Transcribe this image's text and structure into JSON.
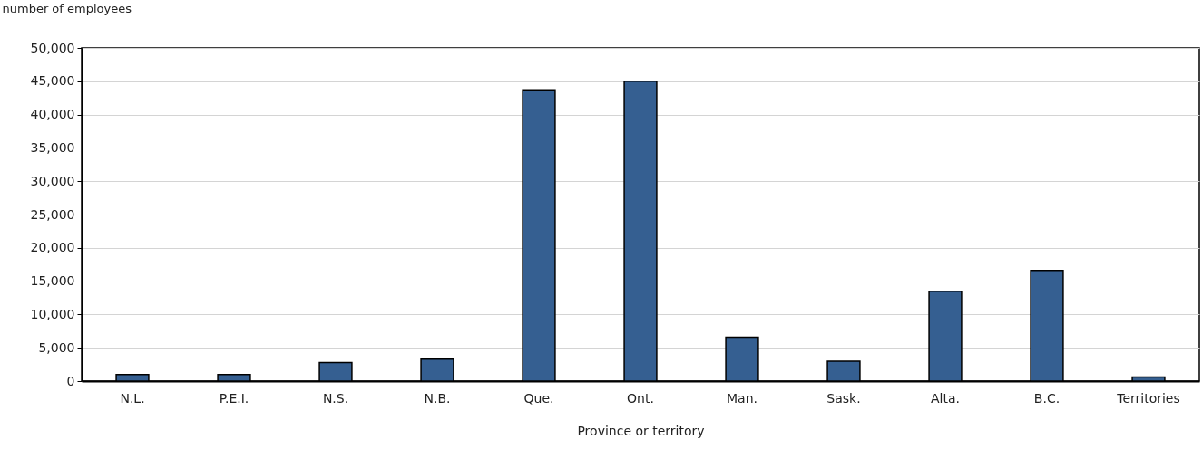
{
  "chart_data": {
    "type": "bar",
    "ylabel": "number of employees",
    "xlabel": "Province or territory",
    "categories": [
      "N.L.",
      "P.E.I.",
      "N.S.",
      "N.B.",
      "Que.",
      "Ont.",
      "Man.",
      "Sask.",
      "Alta.",
      "B.C.",
      "Territories"
    ],
    "values": [
      1000,
      1000,
      2800,
      3300,
      43700,
      45000,
      6600,
      3000,
      13500,
      16600,
      600
    ],
    "color": "#355f91",
    "ylim": [
      0,
      50000
    ],
    "yticks": [
      0,
      {
        "value": 5000,
        "label": "5,000"
      },
      {
        "value": 10000,
        "label": "10,000"
      },
      {
        "value": 15000,
        "label": "15,000"
      },
      {
        "value": 20000,
        "label": "20,000"
      },
      {
        "value": 25000,
        "label": "25,000"
      },
      {
        "value": 30000,
        "label": "30,000"
      },
      {
        "value": 35000,
        "label": "35,000"
      },
      {
        "value": 40000,
        "label": "40,000"
      },
      {
        "value": 45000,
        "label": "45,000"
      },
      {
        "value": 50000,
        "label": "50,000"
      }
    ],
    "grid": "y"
  }
}
